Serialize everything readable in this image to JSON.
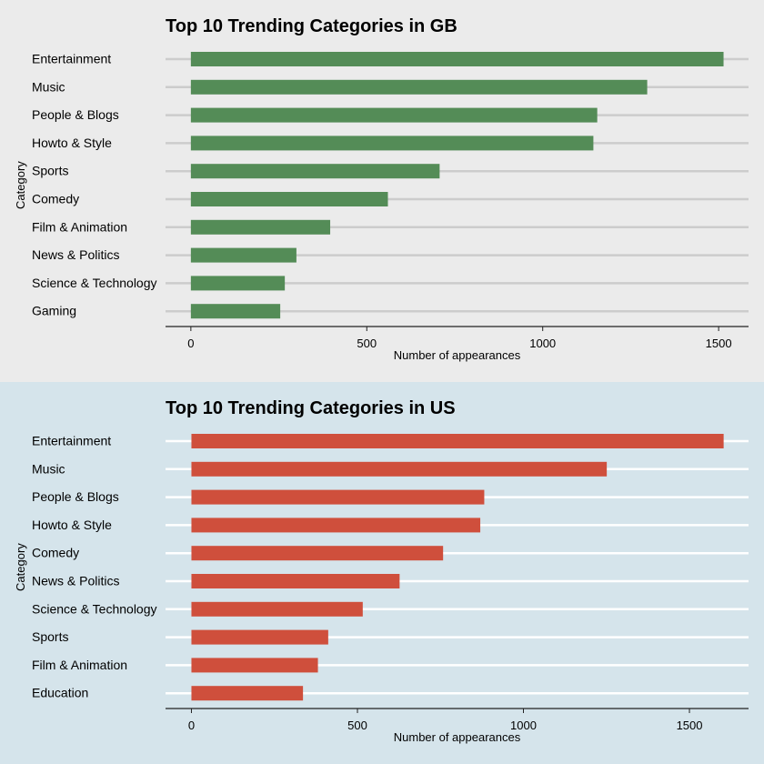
{
  "chart_data": [
    {
      "type": "bar",
      "orientation": "horizontal",
      "title": "Top 10 Trending Categories in GB",
      "xlabel": "Number of appearances",
      "ylabel": "Category",
      "categories": [
        "Entertainment",
        "Music",
        "People & Blogs",
        "Howto & Style",
        "Sports",
        "Comedy",
        "Film & Animation",
        "News & Politics",
        "Science & Technology",
        "Gaming"
      ],
      "values": [
        1514,
        1297,
        1155,
        1144,
        707,
        560,
        396,
        300,
        267,
        254
      ],
      "xticks": [
        0,
        500,
        1000,
        1500
      ],
      "xlim": [
        -72,
        1585
      ],
      "grid": "horizontal",
      "background": "#ebebeb",
      "bar_color": "#548c57",
      "grid_color": "#cccccc"
    },
    {
      "type": "bar",
      "orientation": "horizontal",
      "title": "Top 10 Trending Categories in US",
      "xlabel": "Number of appearances",
      "ylabel": "Category",
      "categories": [
        "Entertainment",
        "Music",
        "People & Blogs",
        "Howto & Style",
        "Comedy",
        "News & Politics",
        "Science & Technology",
        "Sports",
        "Film & Animation",
        "Education"
      ],
      "values": [
        1603,
        1251,
        882,
        870,
        758,
        627,
        516,
        412,
        381,
        336
      ],
      "xticks": [
        0,
        500,
        1000,
        1500
      ],
      "xlim": [
        -78,
        1678
      ],
      "grid": "horizontal",
      "background": "#d5e4eb",
      "bar_color": "#cf4f3c",
      "grid_color": "#ffffff"
    }
  ]
}
